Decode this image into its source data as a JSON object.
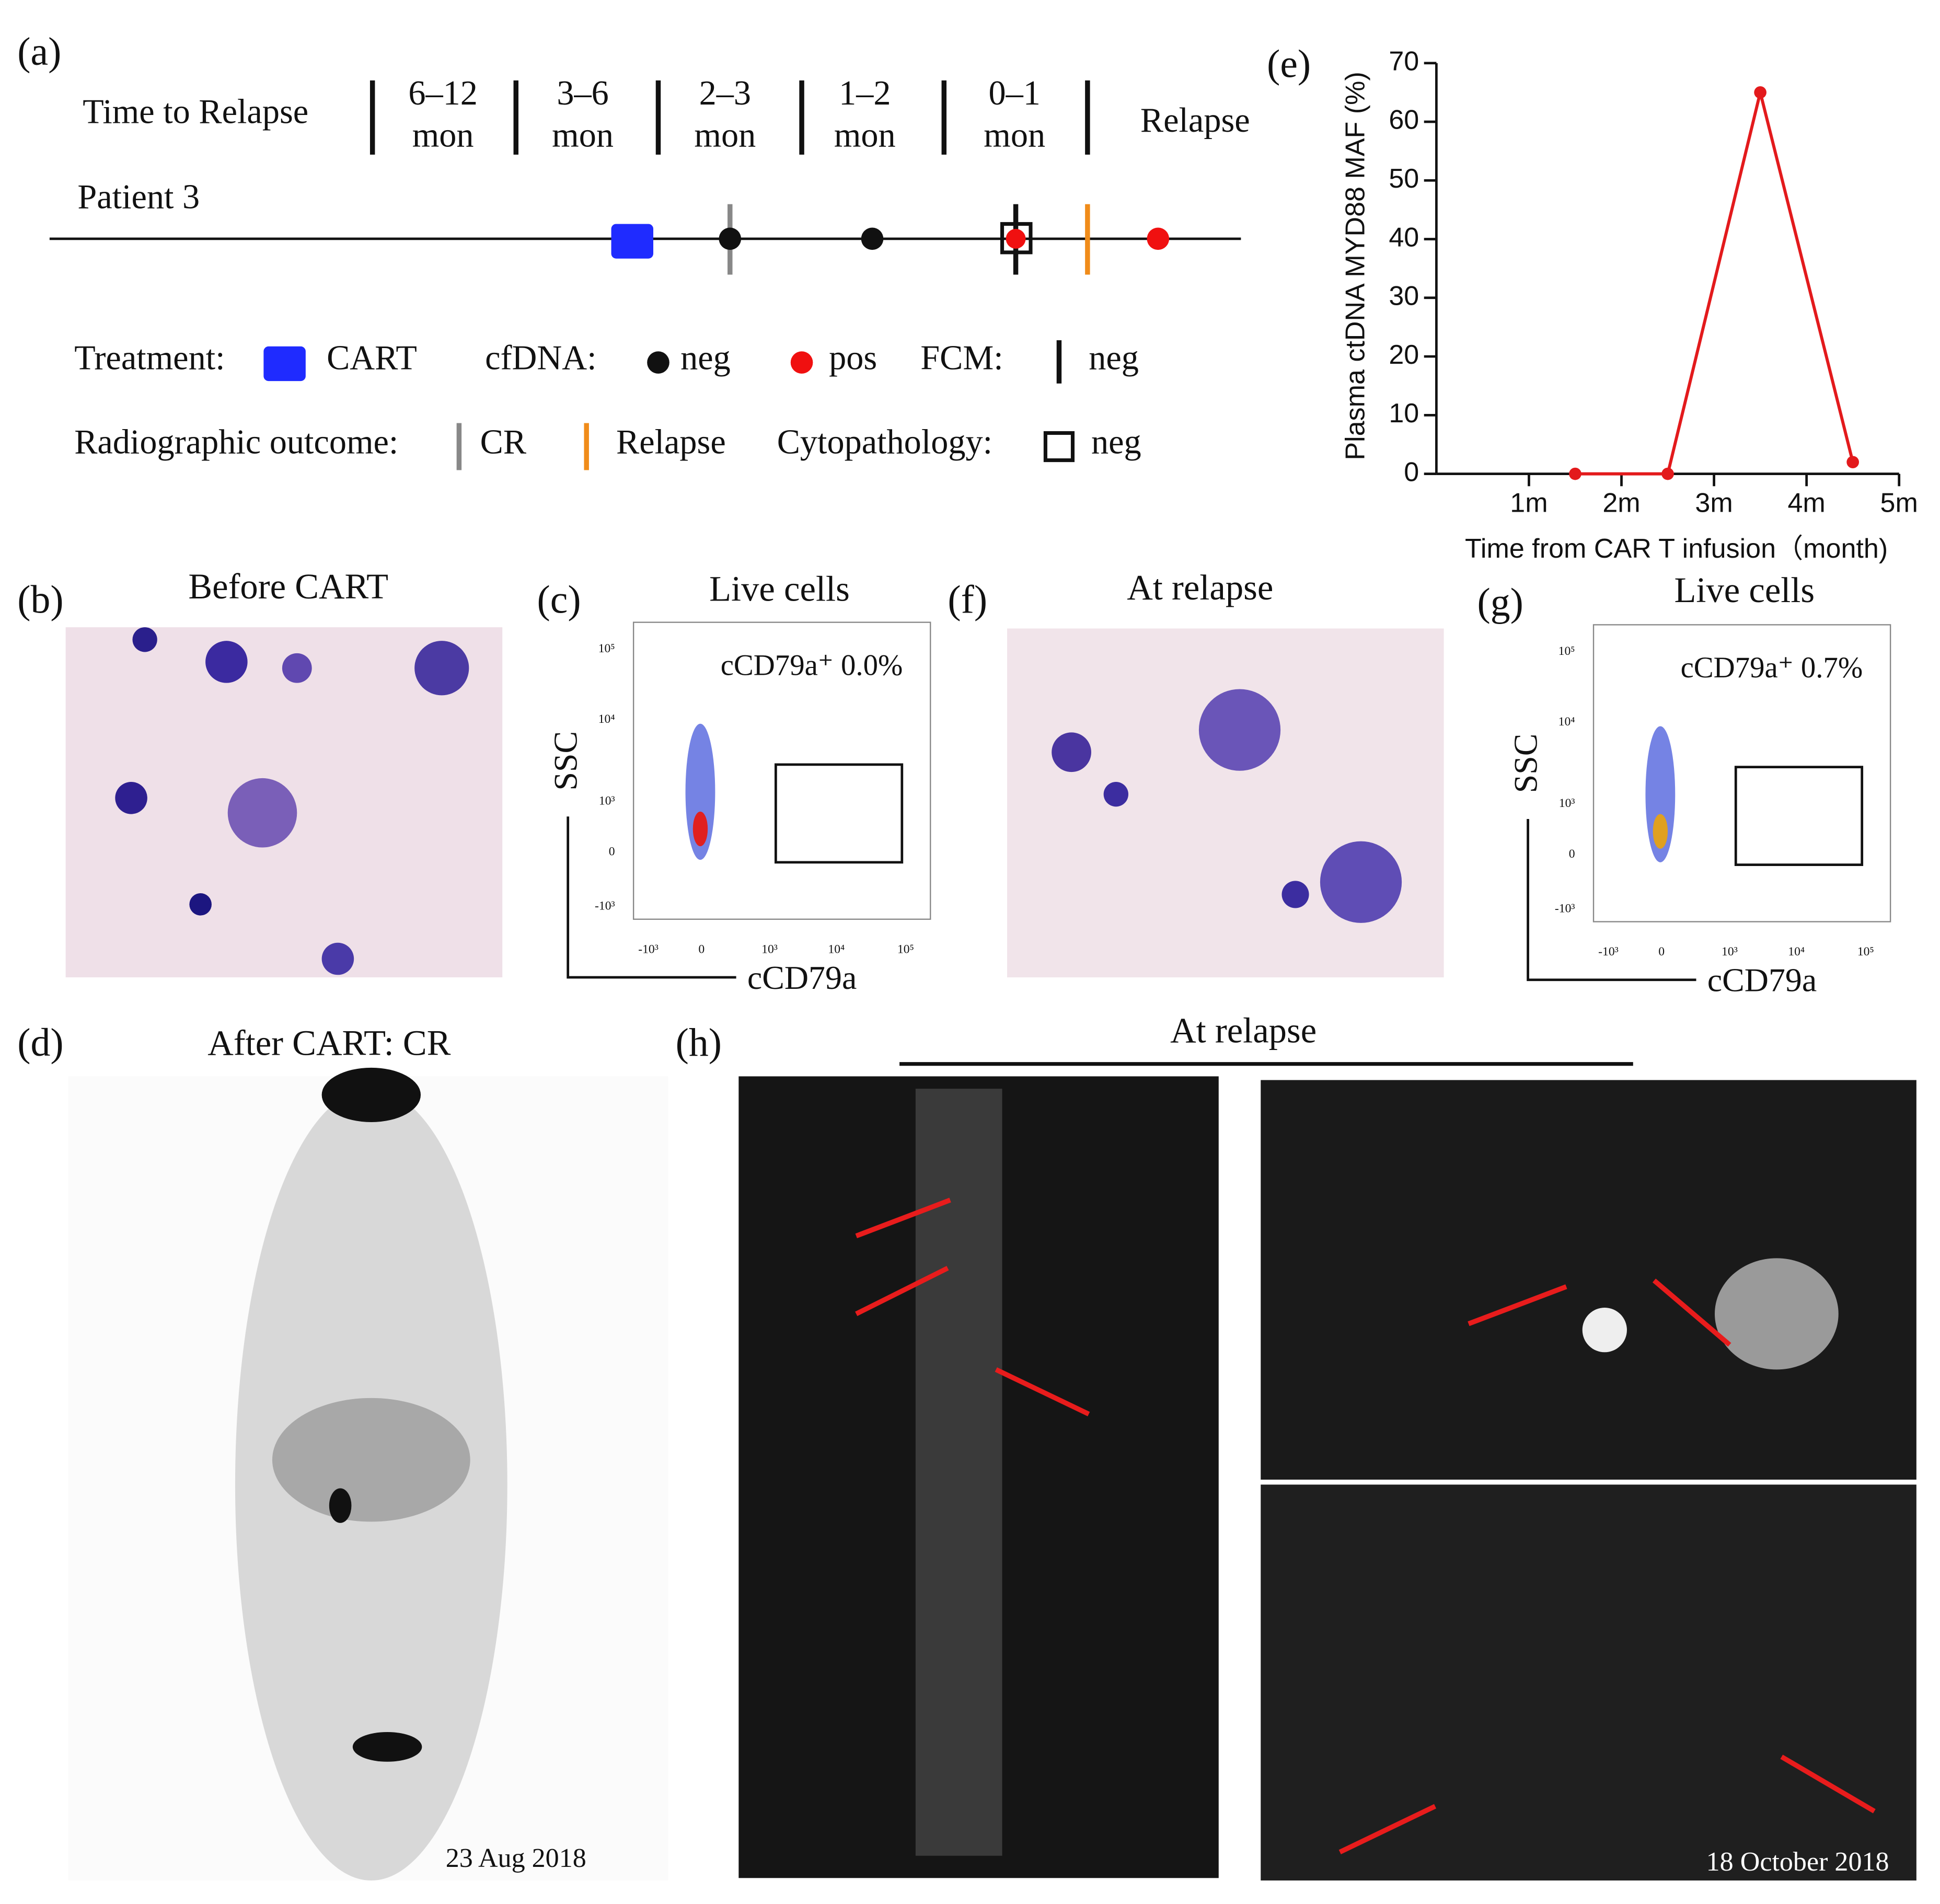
{
  "panel_a": {
    "label": "(a)",
    "time_label": "Time to Relapse",
    "intervals": [
      [
        "6–12",
        "mon"
      ],
      [
        "3–6",
        "mon"
      ],
      [
        "2–3",
        "mon"
      ],
      [
        "1–2",
        "mon"
      ],
      [
        "0–1",
        "mon"
      ]
    ],
    "relapse_label": "Relapse",
    "patient": "Patient 3",
    "legend_row1": {
      "treatment": "Treatment:",
      "cart": "CART",
      "cfdna": "cfDNA:",
      "neg": "neg",
      "pos": "pos",
      "fcm": "FCM:",
      "fcm_neg": "neg"
    },
    "legend_row2": {
      "radiographic": "Radiographic outcome:",
      "cr": "CR",
      "relapse": "Relapse",
      "cytopathology": "Cytopathology:",
      "neg": "neg"
    }
  },
  "panel_b": {
    "label": "(b)",
    "title": "Before CART"
  },
  "panel_c": {
    "label": "(c)",
    "title": "Live cells",
    "gate_label": "cCD79a⁺ 0.0%",
    "y_label": "SSC",
    "x_label": "cCD79a",
    "y_ticks": [
      "10⁵",
      "10⁴",
      "10³",
      "0",
      "-10³"
    ],
    "x_ticks": [
      "-10³",
      "0",
      "10³",
      "10⁴",
      "10⁵"
    ]
  },
  "panel_d": {
    "label": "(d)",
    "title": "After CART: CR",
    "date": "23 Aug 2018"
  },
  "panel_f": {
    "label": "(f)",
    "title": "At relapse"
  },
  "panel_g": {
    "label": "(g)",
    "title": "Live cells",
    "gate_label": "cCD79a⁺ 0.7%",
    "y_label": "SSC",
    "x_label": "cCD79a",
    "y_ticks": [
      "10⁵",
      "10⁴",
      "10³",
      "0",
      "-10³"
    ],
    "x_ticks": [
      "-10³",
      "0",
      "10³",
      "10⁴",
      "10⁵"
    ]
  },
  "panel_h": {
    "label": "(h)",
    "title": "At relapse",
    "date": "18 October 2018"
  },
  "panel_e": {
    "label": "(e)"
  },
  "chart_data": {
    "type": "line",
    "y_label": "Plasma ctDNA MYD88 MAF (%)",
    "x_label": "Time from CAR T infusion（month)",
    "x": [
      1.5,
      2.5,
      3.5,
      4.5
    ],
    "values": [
      0,
      0,
      65,
      2
    ],
    "color": "#e31a1c",
    "xlim": [
      0,
      5
    ],
    "xticks": [
      {
        "value": 1,
        "label": "1m"
      },
      {
        "value": 2,
        "label": "2m"
      },
      {
        "value": 3,
        "label": "3m"
      },
      {
        "value": 4,
        "label": "4m"
      },
      {
        "value": 5,
        "label": "5m"
      }
    ],
    "ylim": [
      0,
      70
    ],
    "yticks": [
      0,
      10,
      20,
      30,
      40,
      50,
      60,
      70
    ]
  }
}
